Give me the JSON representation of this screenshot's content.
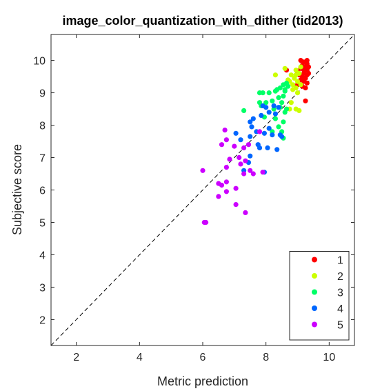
{
  "chart_data": {
    "type": "scatter",
    "title": "image_color_quantization_with_dither (tid2013)",
    "xlabel": "Metric prediction",
    "ylabel": "Subjective score",
    "xlim": [
      1.2,
      10.8
    ],
    "ylim": [
      1.2,
      10.8
    ],
    "xticks": [
      2,
      4,
      6,
      8,
      10
    ],
    "yticks": [
      2,
      3,
      4,
      5,
      6,
      7,
      8,
      9,
      10
    ],
    "grid": false,
    "diagonal_reference": true,
    "legend_position": "bottom-right",
    "series": [
      {
        "name": "1",
        "color": "#ff0000",
        "points": [
          [
            9.1,
            10.0
          ],
          [
            9.2,
            9.95
          ],
          [
            9.3,
            10.0
          ],
          [
            9.15,
            9.85
          ],
          [
            9.25,
            9.8
          ],
          [
            9.3,
            9.7
          ],
          [
            9.2,
            9.6
          ],
          [
            9.1,
            9.75
          ],
          [
            9.0,
            9.65
          ],
          [
            9.3,
            9.55
          ],
          [
            9.15,
            9.5
          ],
          [
            9.25,
            9.45
          ],
          [
            9.35,
            9.6
          ],
          [
            9.05,
            9.55
          ],
          [
            9.1,
            9.4
          ],
          [
            9.2,
            9.35
          ],
          [
            9.3,
            9.3
          ],
          [
            9.15,
            9.2
          ],
          [
            9.0,
            9.25
          ],
          [
            9.25,
            9.15
          ],
          [
            8.65,
            9.7
          ],
          [
            9.25,
            8.75
          ],
          [
            9.3,
            9.9
          ],
          [
            9.2,
            9.7
          ],
          [
            9.35,
            9.8
          ]
        ]
      },
      {
        "name": "2",
        "color": "#ccff00",
        "points": [
          [
            8.6,
            9.75
          ],
          [
            9.1,
            9.8
          ],
          [
            8.95,
            9.7
          ],
          [
            9.05,
            9.6
          ],
          [
            8.8,
            9.55
          ],
          [
            8.9,
            9.45
          ],
          [
            8.75,
            9.35
          ],
          [
            9.0,
            9.35
          ],
          [
            8.85,
            9.25
          ],
          [
            8.95,
            9.15
          ],
          [
            8.3,
            9.55
          ],
          [
            9.0,
            9.0
          ],
          [
            8.8,
            8.7
          ],
          [
            8.95,
            8.5
          ],
          [
            9.05,
            8.45
          ],
          [
            8.75,
            8.5
          ],
          [
            8.85,
            9.1
          ],
          [
            8.95,
            9.55
          ],
          [
            8.7,
            9.4
          ],
          [
            9.1,
            9.25
          ]
        ]
      },
      {
        "name": "3",
        "color": "#00ff66",
        "points": [
          [
            8.55,
            9.25
          ],
          [
            8.65,
            9.3
          ],
          [
            8.7,
            9.2
          ],
          [
            8.45,
            9.15
          ],
          [
            8.6,
            9.1
          ],
          [
            8.4,
            8.85
          ],
          [
            8.55,
            8.9
          ],
          [
            8.6,
            9.05
          ],
          [
            8.3,
            9.05
          ],
          [
            8.35,
            9.1
          ],
          [
            7.9,
            9.0
          ],
          [
            7.8,
            8.7
          ],
          [
            8.0,
            8.7
          ],
          [
            8.1,
            9.0
          ],
          [
            8.2,
            8.75
          ],
          [
            8.5,
            8.7
          ],
          [
            8.45,
            8.55
          ],
          [
            8.6,
            8.4
          ],
          [
            8.55,
            8.1
          ],
          [
            8.5,
            7.8
          ],
          [
            8.4,
            7.95
          ],
          [
            8.3,
            8.2
          ],
          [
            7.3,
            8.45
          ],
          [
            7.85,
            8.6
          ],
          [
            7.95,
            8.25
          ],
          [
            8.2,
            7.8
          ],
          [
            8.55,
            7.6
          ],
          [
            8.65,
            8.5
          ],
          [
            8.25,
            8.5
          ],
          [
            7.8,
            9.0
          ]
        ]
      },
      {
        "name": "4",
        "color": "#0066ff",
        "points": [
          [
            8.4,
            8.55
          ],
          [
            8.3,
            8.35
          ],
          [
            8.25,
            8.6
          ],
          [
            7.9,
            8.6
          ],
          [
            8.0,
            8.55
          ],
          [
            8.1,
            8.4
          ],
          [
            7.6,
            8.2
          ],
          [
            7.5,
            8.1
          ],
          [
            7.55,
            7.95
          ],
          [
            7.7,
            7.8
          ],
          [
            7.95,
            7.75
          ],
          [
            8.1,
            7.9
          ],
          [
            8.2,
            7.7
          ],
          [
            8.45,
            7.7
          ],
          [
            7.05,
            7.75
          ],
          [
            7.5,
            7.65
          ],
          [
            7.2,
            7.55
          ],
          [
            7.75,
            7.4
          ],
          [
            7.8,
            7.3
          ],
          [
            8.05,
            7.3
          ],
          [
            8.35,
            7.25
          ],
          [
            7.5,
            7.05
          ],
          [
            7.95,
            6.55
          ],
          [
            7.3,
            6.6
          ],
          [
            7.45,
            6.85
          ],
          [
            8.5,
            7.65
          ],
          [
            7.85,
            8.3
          ]
        ]
      },
      {
        "name": "5",
        "color": "#cc00ff",
        "points": [
          [
            6.7,
            7.85
          ],
          [
            6.75,
            7.55
          ],
          [
            6.6,
            7.4
          ],
          [
            7.0,
            7.35
          ],
          [
            7.45,
            7.4
          ],
          [
            7.3,
            7.3
          ],
          [
            7.15,
            7.0
          ],
          [
            7.2,
            6.8
          ],
          [
            6.85,
            6.95
          ],
          [
            6.75,
            6.7
          ],
          [
            6.0,
            6.6
          ],
          [
            6.5,
            6.2
          ],
          [
            6.6,
            6.15
          ],
          [
            6.75,
            6.25
          ],
          [
            7.3,
            6.5
          ],
          [
            7.5,
            6.6
          ],
          [
            7.9,
            6.55
          ],
          [
            7.6,
            6.5
          ],
          [
            7.05,
            6.05
          ],
          [
            6.75,
            5.95
          ],
          [
            6.5,
            5.8
          ],
          [
            7.05,
            5.55
          ],
          [
            7.35,
            5.3
          ],
          [
            6.1,
            5.0
          ],
          [
            6.05,
            5.0
          ],
          [
            7.8,
            7.8
          ],
          [
            7.35,
            6.9
          ]
        ]
      }
    ]
  }
}
